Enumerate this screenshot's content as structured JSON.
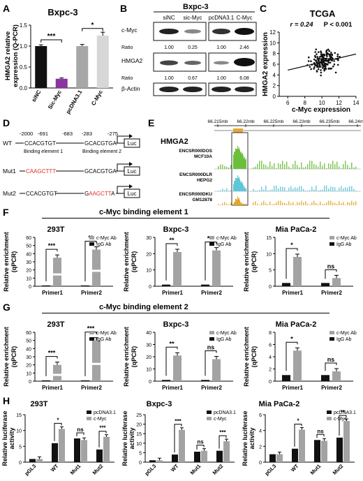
{
  "panel_letters": [
    "A",
    "B",
    "C",
    "D",
    "E",
    "F",
    "G",
    "H"
  ],
  "A": {
    "title": "Bxpc-3",
    "ylabel_line1": "HMGA2 relative",
    "ylabel_line2": "expression (Q-PCR)",
    "chart_data": {
      "type": "bar",
      "categories": [
        "siNC",
        "Sic-Myc",
        "pcDNA3.1",
        "C-Myc"
      ],
      "values": [
        1.0,
        0.22,
        1.0,
        1.25
      ],
      "errors": [
        0.03,
        0.02,
        0.04,
        0.08
      ],
      "colors": [
        "#111111",
        "#8a35a0",
        "#a7a7a7",
        "#d7d7d7"
      ],
      "ylim": [
        0,
        1.5
      ],
      "yticks": [
        "0.0",
        "0.5",
        "1.0",
        "1.5"
      ],
      "significance": [
        "***",
        "*"
      ]
    }
  },
  "B": {
    "cell_line": "Bxpc-3",
    "lanes": [
      "siNC",
      "sic-Myc",
      "pcDNA3.1",
      "C-Myc"
    ],
    "rows": [
      {
        "label": "c-Myc",
        "ratio_label": "Ratio",
        "ratios": [
          "1.00",
          "0.25",
          "1.00",
          "2.46"
        ]
      },
      {
        "label": "HMGA2",
        "ratio_label": "Ratio",
        "ratios": [
          "1.00",
          "0.67",
          "1.00",
          "6.08"
        ]
      },
      {
        "label": "β-Actin"
      }
    ]
  },
  "C": {
    "title": "TCGA",
    "stat_r": "r = 0.24",
    "stat_p": "P < 0.001",
    "xlabel": "c-Myc expression",
    "ylabel": "HMGA2 expression",
    "chart_data": {
      "type": "scatter",
      "xlim": [
        5,
        14
      ],
      "ylim": [
        0,
        12
      ],
      "xticks": [
        "6",
        "8",
        "10",
        "12",
        "14"
      ],
      "yticks": [
        "0",
        "2",
        "4",
        "6",
        "8",
        "10",
        "12"
      ],
      "fit_line": {
        "x": [
          6,
          14
        ],
        "y": [
          4.9,
          7.9
        ]
      }
    }
  },
  "D": {
    "wt_label": "WT",
    "mut1_label": "Mut1",
    "mut2_label": "Mut2",
    "positions": [
      "-2000",
      "-691",
      "-683",
      "-283",
      "-275"
    ],
    "wt_seq1": "CCACGTGT",
    "wt_seq2": "GCACGTGA",
    "mut1_seq1": "CAAGCTTT",
    "mut1_seq2": "GCACGTGA",
    "mut2_seq1": "CCACGTGT",
    "mut2_seq2_a": "G",
    "mut2_seq2_b": "AAGCTT",
    "mut2_seq2_c": "A",
    "element1": "Binding element 1",
    "element2": "Binding element 2",
    "reporter": "Luc",
    "mut_color": "#e0302a"
  },
  "E": {
    "gene": "HMGA2",
    "coords": [
      "66.215mb",
      "66.22mb",
      "66.225mb",
      "66.23mb",
      "66.235mb",
      "66.24mb"
    ],
    "tracks": [
      {
        "id": "ENCSR000DOS",
        "cell": "MCF10A",
        "color": "#6cbf3a"
      },
      {
        "id": "ENCSR000DLR",
        "cell": "HEPG2",
        "color": "#5ec6d8"
      },
      {
        "id": "ENCSR000DKU",
        "cell": "GM12878",
        "color": "#e0a72a"
      }
    ]
  },
  "F": {
    "header": "c-Myc binding element 1",
    "ylabel_line1": "Relative enrichment",
    "ylabel_line2": "(qPCR)",
    "legend": [
      "c-Myc Ab",
      "IgG Ab"
    ],
    "charts": [
      {
        "title": "293T",
        "categories": [
          "Primer1",
          "Primer2"
        ],
        "cmyc": [
          35,
          45
        ],
        "igg": [
          1,
          1
        ],
        "ylim": [
          0,
          60
        ],
        "yticks": [
          "0",
          "10",
          "20",
          "30",
          "40",
          "50",
          "60"
        ],
        "sig": [
          "***",
          "**"
        ],
        "broken": true
      },
      {
        "title": "Bxpc-3",
        "categories": [
          "Primer1",
          "Primer2"
        ],
        "cmyc": [
          21,
          22
        ],
        "igg": [
          1,
          1
        ],
        "ylim": [
          0,
          30
        ],
        "yticks": [
          "0",
          "10",
          "20",
          "30"
        ],
        "sig": [
          "**",
          "***"
        ],
        "broken": false
      },
      {
        "title": "Mia PaCa-2",
        "categories": [
          "Primer1",
          "Primer2"
        ],
        "cmyc": [
          9,
          2.5
        ],
        "igg": [
          1,
          1
        ],
        "ylim": [
          0,
          15
        ],
        "yticks": [
          "0",
          "5",
          "10",
          "15"
        ],
        "sig": [
          "*",
          "ns"
        ],
        "broken": false
      }
    ]
  },
  "G": {
    "header": "c-Myc binding element 2",
    "ylabel_line1": "Relative enrichment",
    "ylabel_line2": "(qPCR)",
    "legend": [
      "c-Myc Ab",
      "IgG Ab"
    ],
    "charts": [
      {
        "title": "293T",
        "categories": [
          "Primer1",
          "Primer2"
        ],
        "cmyc": [
          20,
          50
        ],
        "igg": [
          1,
          1
        ],
        "ylim": [
          0,
          60
        ],
        "yticks": [
          "0",
          "10",
          "20",
          "30",
          "40",
          "50",
          "60"
        ],
        "sig": [
          "***",
          "***"
        ],
        "broken": true
      },
      {
        "title": "Bxpc-3",
        "categories": [
          "Primer1",
          "Primer2"
        ],
        "cmyc": [
          21,
          18
        ],
        "igg": [
          1,
          1
        ],
        "ylim": [
          0,
          40
        ],
        "yticks": [
          "0",
          "10",
          "20",
          "30",
          "40"
        ],
        "sig": [
          "**",
          "ns"
        ],
        "broken": false
      },
      {
        "title": "Mia PaCa-2",
        "categories": [
          "Primer1",
          "Primer2"
        ],
        "cmyc": [
          5,
          1.6
        ],
        "igg": [
          1,
          1
        ],
        "ylim": [
          0,
          8
        ],
        "yticks": [
          "0",
          "2",
          "4",
          "6",
          "8"
        ],
        "sig": [
          "*",
          "ns"
        ],
        "broken": false
      }
    ]
  },
  "H": {
    "ylabel_line1": "Relative luciferase",
    "ylabel_line2": "activity",
    "legend": [
      "pcDNA3.1",
      "c-Myc"
    ],
    "charts": [
      {
        "title": "293T",
        "categories": [
          "pGL3",
          "WT",
          "Mut1",
          "Mut2"
        ],
        "pcdna": [
          1,
          6,
          7.5,
          4
        ],
        "cmyc": [
          1,
          10.5,
          7,
          8
        ],
        "ylim": [
          0,
          15
        ],
        "yticks": [
          "0",
          "5",
          "10",
          "15"
        ],
        "sig": [
          "",
          "*",
          "ns",
          "***"
        ]
      },
      {
        "title": "Bxpc-3",
        "categories": [
          "pGL3",
          "WT",
          "Mut1",
          "Mut2"
        ],
        "pcdna": [
          1,
          4,
          5.5,
          6
        ],
        "cmyc": [
          1,
          17,
          6,
          11
        ],
        "ylim": [
          0,
          25
        ],
        "yticks": [
          "0",
          "5",
          "10",
          "15",
          "20",
          "25"
        ],
        "sig": [
          "",
          "***",
          "ns",
          "***"
        ]
      },
      {
        "title": "Mia PaCa-2",
        "categories": [
          "pGL3",
          "WT",
          "Mut1",
          "Mut2"
        ],
        "pcdna": [
          1,
          1.7,
          2.8,
          3.1
        ],
        "cmyc": [
          1,
          4.1,
          2.7,
          5.2
        ],
        "ylim": [
          0,
          6
        ],
        "yticks": [
          "0",
          "2",
          "4",
          "6"
        ],
        "sig": [
          "",
          "*",
          "ns",
          "**"
        ]
      }
    ]
  }
}
